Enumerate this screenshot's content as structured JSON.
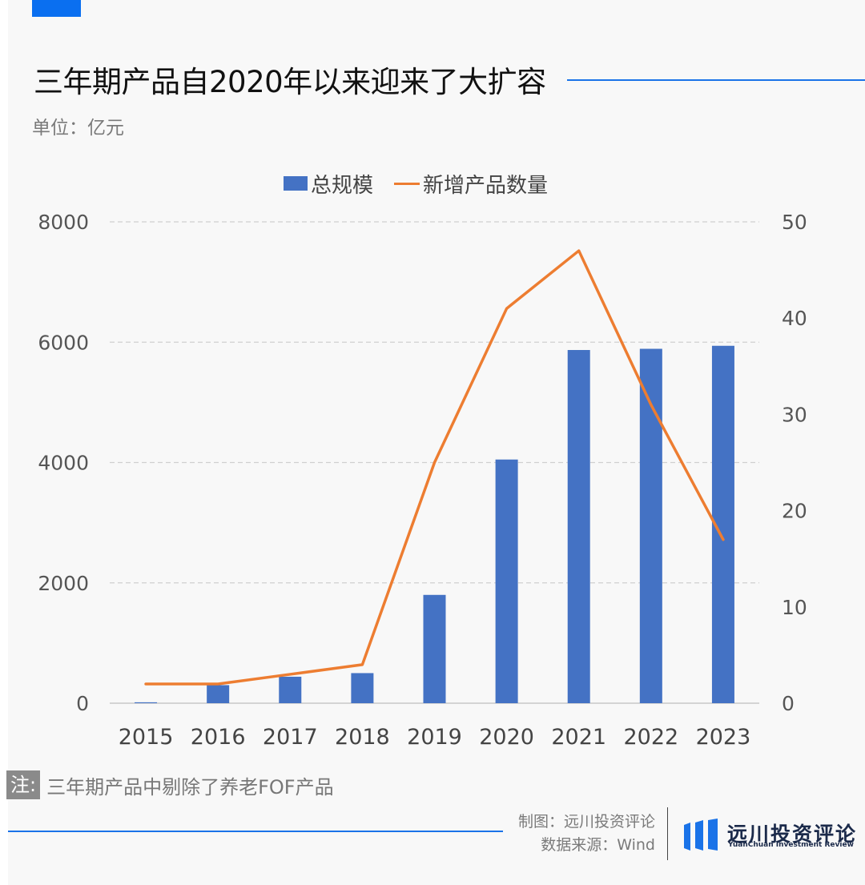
{
  "header": {
    "title": "三年期产品自2020年以来迎来了大扩容",
    "unit": "单位：亿元"
  },
  "chart_data": {
    "type": "bar",
    "categories": [
      "2015",
      "2016",
      "2017",
      "2018",
      "2019",
      "2020",
      "2021",
      "2022",
      "2023"
    ],
    "series": [
      {
        "name": "总规模",
        "type": "bar",
        "axis": "left",
        "color": "#4472c4",
        "values": [
          15,
          300,
          440,
          500,
          1800,
          4050,
          5870,
          5890,
          5940
        ]
      },
      {
        "name": "新增产品数量",
        "type": "line",
        "axis": "right",
        "color": "#ed7d31",
        "values": [
          2,
          2,
          3,
          4,
          25,
          41,
          47,
          31,
          17
        ]
      }
    ],
    "left_axis": {
      "min": 0,
      "max": 8000,
      "ticks": [
        "0",
        "2000",
        "4000",
        "6000",
        "8000"
      ]
    },
    "right_axis": {
      "min": 0,
      "max": 50,
      "ticks": [
        "0",
        "10",
        "20",
        "30",
        "40",
        "50"
      ]
    },
    "grid": true,
    "legend_position": "top-center"
  },
  "note": {
    "tag": "注:",
    "text": "三年期产品中剔除了养老FOF产品"
  },
  "credits": {
    "maker": "制图：远川投资评论",
    "source": "数据来源：Wind"
  },
  "logo": {
    "name": "远川投资评论",
    "subtitle": "YuanChuan Investment Review"
  }
}
